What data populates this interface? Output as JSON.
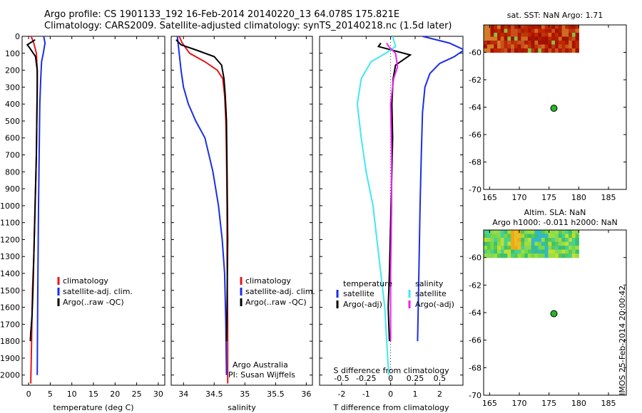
{
  "header": {
    "line1": "Argo profile: CS 1901133_192 16-Feb-2014 20140220_13 64.078S 175.821E",
    "line2": "Climatology: CARS2009. Satellite-adjusted climatology: synTS_20140218.nc (1.5d later)"
  },
  "credit": "IMOS 25-Feb-2014 20:00:42",
  "colors": {
    "climatology": "#e8141c",
    "satellite": "#1a2ee6",
    "argo": "#000000",
    "sat_salinity": "#40e8ee",
    "argo_salinity": "#ee22ee",
    "marker": "#28b428"
  },
  "chart_data": [
    {
      "type": "line",
      "name": "temperature-profile",
      "xlabel": "temperature (deg C)",
      "ylabel": "",
      "xlim": [
        -1.5,
        31.5
      ],
      "ylim": [
        2060,
        0
      ],
      "xticks": [
        0,
        5,
        10,
        15,
        20,
        25,
        30
      ],
      "yticks": [
        0,
        100,
        200,
        300,
        400,
        500,
        600,
        700,
        800,
        900,
        1000,
        1100,
        1200,
        1300,
        1400,
        1500,
        1600,
        1700,
        1800,
        1900,
        2000
      ],
      "legend": [
        "climatology",
        "satellite-adj. clim.",
        "Argo(..raw -QC)"
      ],
      "series": [
        {
          "name": "climatology",
          "color_key": "climatology",
          "x": [
            0.6,
            1.2,
            1.8,
            2.0,
            2.0,
            1.9,
            1.8,
            1.6,
            1.4,
            1.2,
            0.9,
            0.7,
            0.5
          ],
          "y": [
            0,
            40,
            100,
            200,
            300,
            500,
            700,
            900,
            1100,
            1300,
            1500,
            1800,
            2050
          ]
        },
        {
          "name": "satellite-adj. clim.",
          "color_key": "satellite",
          "x": [
            3.5,
            3.8,
            3.4,
            3.0,
            2.8,
            2.6,
            2.5,
            2.4,
            2.3,
            2.2,
            2.1,
            2.0
          ],
          "y": [
            0,
            40,
            100,
            150,
            250,
            400,
            600,
            800,
            1000,
            1300,
            1600,
            2000
          ]
        },
        {
          "name": "Argo(..raw -QC)",
          "color_key": "argo",
          "x": [
            1.5,
            -0.3,
            0.3,
            1.6,
            2.0,
            2.0,
            1.9,
            1.8,
            1.6,
            1.4,
            1.2,
            1.0,
            0.8,
            0.5,
            0.4
          ],
          "y": [
            20,
            50,
            70,
            120,
            200,
            300,
            500,
            700,
            900,
            1100,
            1300,
            1500,
            1650,
            1750,
            1800
          ]
        }
      ]
    },
    {
      "type": "line",
      "name": "salinity-profile",
      "xlabel": "salinity",
      "ylabel": "",
      "xlim": [
        33.8,
        36.1
      ],
      "ylim": [
        2060,
        0
      ],
      "xticks": [
        34,
        34.5,
        35,
        35.5,
        36
      ],
      "xticklabels": [
        "34",
        "34.5",
        "35",
        "35.5",
        "36"
      ],
      "legend": [
        "climatology",
        "satellite-adj. clim.",
        "Argo(..raw -QC)"
      ],
      "annotations": [
        "Argo Australia",
        "PI: Susan Wijffels"
      ],
      "series": [
        {
          "name": "climatology",
          "color_key": "climatology",
          "x": [
            33.93,
            33.98,
            34.1,
            34.35,
            34.55,
            34.64,
            34.67,
            34.69,
            34.7,
            34.71,
            34.71,
            34.72,
            34.72
          ],
          "y": [
            0,
            40,
            100,
            150,
            200,
            250,
            350,
            500,
            700,
            1000,
            1300,
            1700,
            2050
          ]
        },
        {
          "name": "satellite-adj. clim.",
          "color_key": "satellite",
          "x": [
            33.9,
            33.93,
            33.96,
            34.0,
            34.08,
            34.2,
            34.35,
            34.48,
            34.57,
            34.63,
            34.67,
            34.69,
            34.7
          ],
          "y": [
            0,
            100,
            200,
            300,
            400,
            500,
            600,
            800,
            1000,
            1200,
            1400,
            1700,
            2000
          ]
        },
        {
          "name": "Argo(..raw -QC)",
          "color_key": "argo",
          "x": [
            33.88,
            33.96,
            34.2,
            34.5,
            34.62,
            34.66,
            34.68,
            34.7,
            34.71,
            34.72,
            34.71,
            34.7
          ],
          "y": [
            20,
            50,
            80,
            120,
            170,
            250,
            350,
            500,
            800,
            1200,
            1600,
            1800
          ]
        }
      ]
    },
    {
      "type": "line",
      "name": "difference-profile",
      "xlabel": "T difference from climatology",
      "top_xlabel": "S difference from climatology",
      "xlim": [
        -2.9,
        2.95
      ],
      "ylim": [
        2060,
        0
      ],
      "xticks": [
        -2,
        -1,
        0,
        1,
        2
      ],
      "xticklabels": [
        "-2",
        "-1",
        "0",
        "1",
        "2"
      ],
      "top_xticks": [
        -0.5,
        -0.25,
        0,
        0.25,
        0.5
      ],
      "top_xticklabels": [
        "-0.5",
        "-0.25",
        "0",
        "0.25",
        "0.5"
      ],
      "legend_headers": [
        "temperature",
        "salinity"
      ],
      "legend": [
        "satellite",
        "Argo(-adj)",
        "satellite",
        "Argo(-adj)"
      ],
      "series": [
        {
          "name": "satellite",
          "group": "temperature",
          "color_key": "satellite",
          "x": [
            1.3,
            2.4,
            3.0,
            2.6,
            2.0,
            1.6,
            1.4,
            1.3,
            1.25,
            1.2,
            1.15,
            1.1
          ],
          "y": [
            0,
            40,
            80,
            120,
            160,
            220,
            300,
            450,
            700,
            1000,
            1400,
            1800
          ]
        },
        {
          "name": "Argo(-adj)",
          "group": "temperature",
          "color_key": "argo",
          "x": [
            -0.4,
            -0.5,
            0.8,
            0.2,
            0.1,
            0.05,
            0.08,
            0.05,
            0.0,
            -0.05,
            -0.1,
            -0.05
          ],
          "y": [
            40,
            60,
            110,
            170,
            250,
            400,
            600,
            800,
            1100,
            1400,
            1600,
            1800
          ]
        },
        {
          "name": "satellite",
          "group": "salinity",
          "color_key": "sat_salinity",
          "x": [
            0.02,
            0.05,
            -0.05,
            -0.2,
            -0.3,
            -0.34,
            -0.3,
            -0.25,
            -0.18,
            -0.12,
            -0.06,
            -0.02
          ],
          "y": [
            0,
            60,
            100,
            150,
            250,
            400,
            600,
            800,
            1000,
            1300,
            1600,
            2000
          ]
        },
        {
          "name": "Argo(-adj)",
          "group": "salinity",
          "color_key": "argo_salinity",
          "x": [
            -0.04,
            -0.02,
            0.05,
            0.07,
            0.03,
            0.0,
            0.01,
            0.01,
            0.0,
            0.0
          ],
          "y": [
            40,
            60,
            100,
            180,
            250,
            400,
            700,
            1000,
            1400,
            1800
          ]
        }
      ]
    },
    {
      "type": "heatmap",
      "name": "sst-map",
      "title": "sat. SST: NaN Argo: 1.71",
      "xlim": [
        164,
        188
      ],
      "ylim": [
        -70,
        -58
      ],
      "xticks": [
        165,
        170,
        175,
        180,
        185
      ],
      "yticks": [
        -60,
        -62,
        -64,
        -66,
        -68,
        -70
      ],
      "field_extent": {
        "lon": [
          164,
          180
        ],
        "lat": [
          -58,
          -60
        ]
      },
      "marker": {
        "lon": 175.821,
        "lat": -64.078
      }
    },
    {
      "type": "heatmap",
      "name": "sla-map",
      "title": "Altim. SLA: NaN",
      "subtitle": "Argo h1000: -0.011 h2000: NaN",
      "xlim": [
        164,
        188
      ],
      "ylim": [
        -70,
        -58
      ],
      "xticks": [
        165,
        170,
        175,
        180,
        185
      ],
      "yticks": [
        -60,
        -62,
        -64,
        -66,
        -68,
        -70
      ],
      "field_extent": {
        "lon": [
          164,
          180
        ],
        "lat": [
          -58,
          -60
        ]
      },
      "marker": {
        "lon": 175.821,
        "lat": -64.078
      }
    }
  ]
}
